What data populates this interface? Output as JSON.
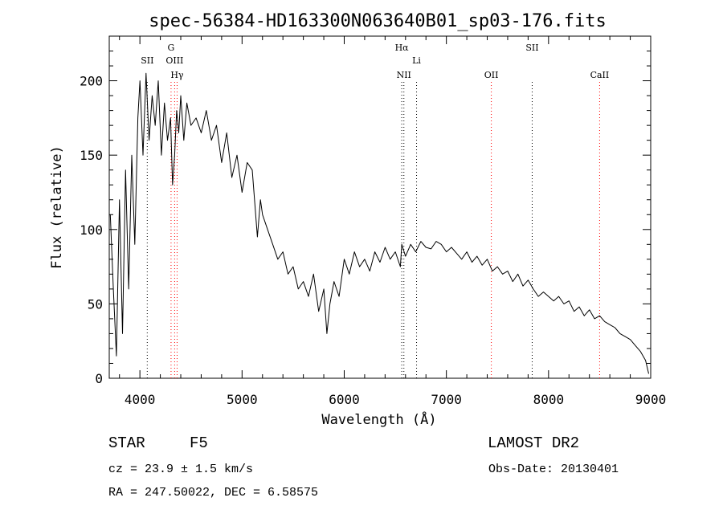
{
  "chart_data": {
    "type": "line",
    "title": "spec-56384-HD163300N063640B01_sp03-176.fits",
    "xlabel": "Wavelength (Å)",
    "ylabel": "Flux (relative)",
    "xlim": [
      3700,
      9000
    ],
    "ylim": [
      0,
      230
    ],
    "xticks": [
      4000,
      5000,
      6000,
      7000,
      8000,
      9000
    ],
    "yticks": [
      0,
      50,
      100,
      150,
      200
    ],
    "grid": false,
    "series": [
      {
        "color": "#000000",
        "x": [
          3710,
          3740,
          3770,
          3800,
          3830,
          3860,
          3890,
          3920,
          3950,
          3980,
          4000,
          4030,
          4060,
          4090,
          4120,
          4150,
          4180,
          4210,
          4240,
          4270,
          4300,
          4320,
          4340,
          4360,
          4380,
          4400,
          4430,
          4460,
          4500,
          4550,
          4600,
          4650,
          4700,
          4750,
          4800,
          4850,
          4900,
          4950,
          5000,
          5050,
          5100,
          5150,
          5180,
          5200,
          5250,
          5300,
          5350,
          5400,
          5450,
          5500,
          5550,
          5600,
          5650,
          5700,
          5750,
          5800,
          5830,
          5860,
          5900,
          5950,
          6000,
          6050,
          6100,
          6150,
          6200,
          6250,
          6300,
          6350,
          6400,
          6450,
          6500,
          6550,
          6563,
          6600,
          6650,
          6700,
          6750,
          6800,
          6850,
          6900,
          6950,
          7000,
          7050,
          7100,
          7150,
          7200,
          7250,
          7300,
          7350,
          7400,
          7450,
          7500,
          7550,
          7600,
          7650,
          7700,
          7750,
          7800,
          7850,
          7900,
          7950,
          8000,
          8050,
          8100,
          8150,
          8200,
          8250,
          8300,
          8350,
          8400,
          8450,
          8500,
          8550,
          8600,
          8650,
          8700,
          8750,
          8800,
          8850,
          8900,
          8950,
          8980
        ],
        "y": [
          110,
          60,
          15,
          120,
          30,
          140,
          60,
          150,
          90,
          175,
          200,
          150,
          205,
          160,
          190,
          170,
          200,
          150,
          185,
          160,
          175,
          130,
          150,
          180,
          165,
          190,
          160,
          185,
          170,
          175,
          165,
          180,
          160,
          170,
          145,
          165,
          135,
          150,
          125,
          145,
          140,
          95,
          120,
          110,
          100,
          90,
          80,
          85,
          70,
          75,
          60,
          65,
          55,
          70,
          45,
          60,
          30,
          50,
          65,
          55,
          80,
          70,
          85,
          75,
          80,
          72,
          85,
          78,
          88,
          80,
          85,
          75,
          90,
          82,
          90,
          85,
          92,
          88,
          87,
          92,
          90,
          85,
          88,
          84,
          80,
          85,
          78,
          82,
          76,
          80,
          72,
          75,
          70,
          72,
          65,
          70,
          62,
          66,
          60,
          55,
          58,
          55,
          52,
          55,
          50,
          52,
          45,
          48,
          42,
          46,
          40,
          42,
          38,
          36,
          34,
          30,
          28,
          26,
          22,
          18,
          12,
          3
        ]
      }
    ],
    "lines": [
      {
        "label": "SII",
        "x": 4072,
        "color": "#000000",
        "label_row": 2
      },
      {
        "label": "G",
        "x": 4305,
        "color": "#ff0000",
        "label_row": 1
      },
      {
        "label": "OIII",
        "x": 4340,
        "color": "#ff0000",
        "label_row": 2
      },
      {
        "label": "Hγ",
        "x": 4364,
        "color": "#ff0000",
        "label_row": 3
      },
      {
        "label": "Hα",
        "x": 6563,
        "color": "#000000",
        "label_row": 1
      },
      {
        "label": "NII",
        "x": 6584,
        "color": "#000000",
        "label_row": 3
      },
      {
        "label": "Li",
        "x": 6708,
        "color": "#000000",
        "label_row": 2
      },
      {
        "label": "OII",
        "x": 7440,
        "color": "#ff0000",
        "label_row": 3
      },
      {
        "label": "SII",
        "x": 7840,
        "color": "#000000",
        "label_row": 1
      },
      {
        "label": "CaII",
        "x": 8500,
        "color": "#ff0000",
        "label_row": 3
      }
    ]
  },
  "info": {
    "object_type": "STAR",
    "subclass": "F5",
    "survey": "LAMOST DR2",
    "cz": "cz = 23.9 ± 1.5 km/s",
    "obs_date": "Obs-Date: 20130401",
    "coords": "RA = 247.50022, DEC =   6.58575"
  }
}
